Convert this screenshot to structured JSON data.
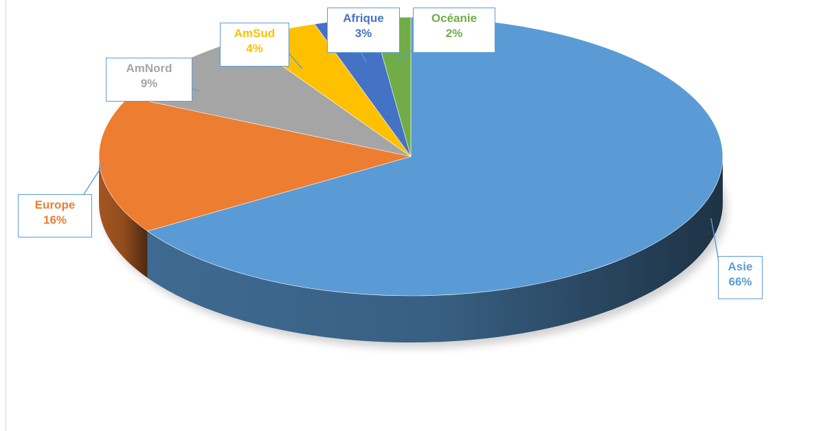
{
  "chart_data": {
    "type": "pie",
    "title": "",
    "series": [
      {
        "name": "Asie",
        "value": 66,
        "label": "66%",
        "color": "#5b9bd5"
      },
      {
        "name": "Europe",
        "value": 16,
        "label": "16%",
        "color": "#ed7d31"
      },
      {
        "name": "AmNord",
        "value": 9,
        "label": "9%",
        "color": "#a5a5a5"
      },
      {
        "name": "AmSud",
        "value": 4,
        "label": "4%",
        "color": "#ffc000"
      },
      {
        "name": "Afrique",
        "value": 3,
        "label": "3%",
        "color": "#4472c4"
      },
      {
        "name": "Océanie",
        "value": 2,
        "label": "2%",
        "color": "#70ad47"
      }
    ],
    "style": "3d",
    "legend": "none",
    "label_style": "callouts"
  }
}
